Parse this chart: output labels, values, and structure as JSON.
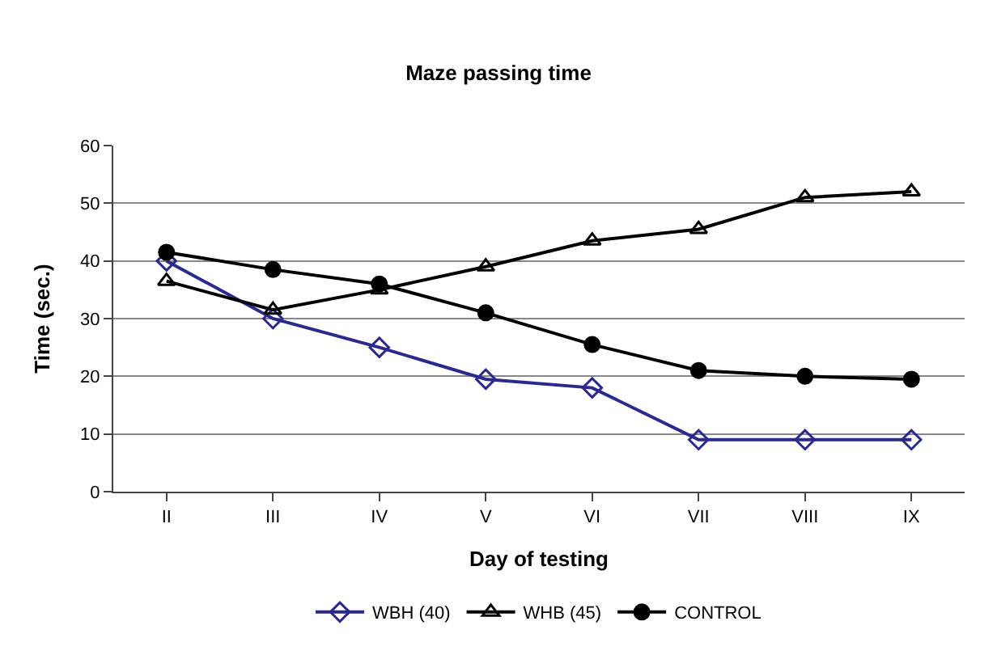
{
  "chart_data": {
    "type": "line",
    "title": "Maze passing time",
    "xlabel": "Day of testing",
    "ylabel": "Time (sec.)",
    "categories": [
      "II",
      "III",
      "IV",
      "V",
      "VI",
      "VII",
      "VIII",
      "IX"
    ],
    "series": [
      {
        "name": "WBH (40)",
        "color": "#2a2a8c",
        "marker": "diamond",
        "values": [
          40,
          30,
          25,
          19.5,
          18,
          9,
          9,
          9
        ]
      },
      {
        "name": "WHB (45)",
        "color": "#000000",
        "marker": "triangle",
        "values": [
          36.5,
          31.5,
          35,
          39,
          43.5,
          45.5,
          51,
          52
        ]
      },
      {
        "name": "CONTROL",
        "color": "#000000",
        "marker": "circle",
        "values": [
          41.5,
          38.5,
          36,
          31,
          25.5,
          21,
          20,
          19.5
        ]
      }
    ],
    "ylim": [
      0,
      60
    ],
    "yticks": [
      0,
      10,
      20,
      30,
      40,
      50,
      60
    ],
    "grid": "y",
    "legend": "bottom",
    "line_style": "solid"
  }
}
